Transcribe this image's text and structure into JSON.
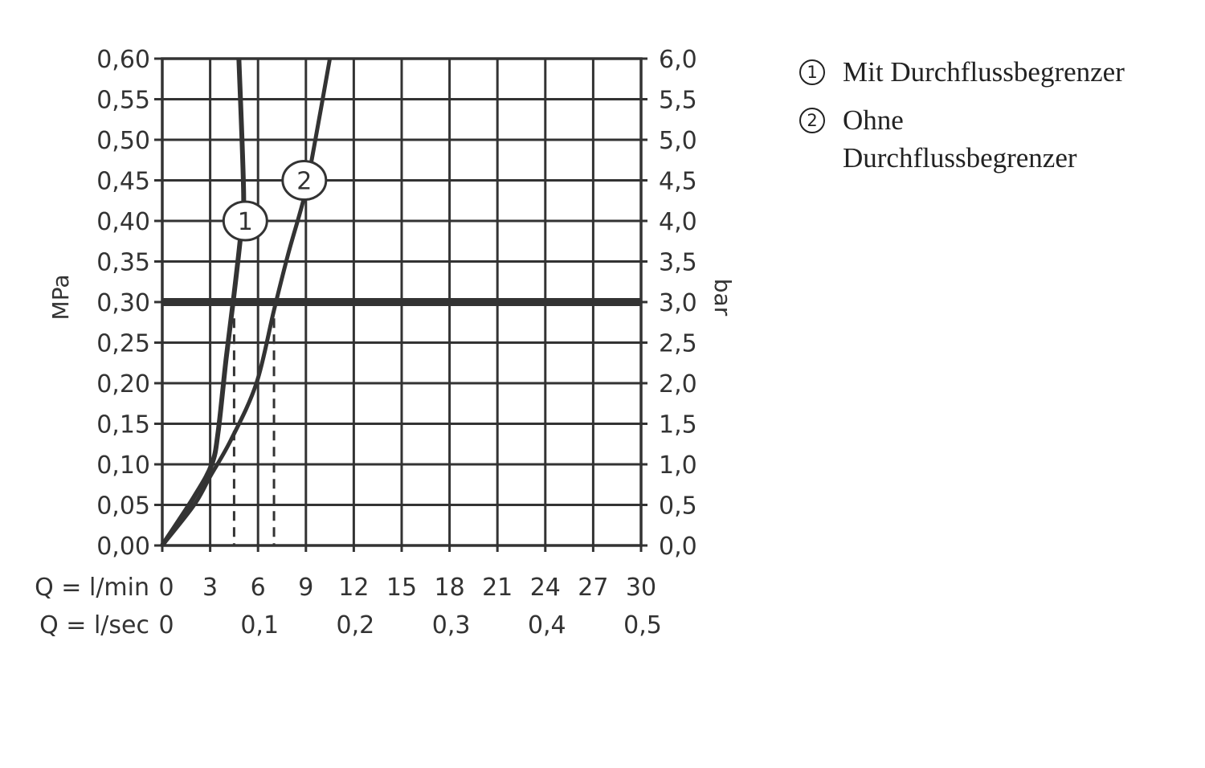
{
  "chart_data": {
    "type": "line",
    "left_axis": {
      "label": "MPa",
      "ylim": [
        0,
        0.6
      ],
      "ticks": [
        "0,00",
        "0,05",
        "0,10",
        "0,15",
        "0,20",
        "0,25",
        "0,30",
        "0,35",
        "0,40",
        "0,45",
        "0,50",
        "0,55",
        "0,60"
      ]
    },
    "right_axis": {
      "label": "bar",
      "ylim": [
        0,
        6
      ],
      "ticks": [
        "0,0",
        "0,5",
        "1,0",
        "1,5",
        "2,0",
        "2,5",
        "3,0",
        "3,5",
        "4,0",
        "4,5",
        "5,0",
        "5,5",
        "6,0"
      ]
    },
    "x_axis": {
      "label": "Q = l/min",
      "xlim": [
        0,
        30
      ],
      "ticks": [
        "0",
        "3",
        "6",
        "9",
        "12",
        "15",
        "18",
        "21",
        "24",
        "27",
        "30"
      ],
      "tick_values": [
        0,
        3,
        6,
        9,
        12,
        15,
        18,
        21,
        24,
        27,
        30
      ]
    },
    "x_axis_secondary": {
      "label": "Q = l/sec",
      "ticks": [
        "0",
        "0,1",
        "0,2",
        "0,3",
        "0,4",
        "0,5"
      ],
      "tick_values_lmin": [
        0,
        6,
        12,
        18,
        24,
        30
      ]
    },
    "grid": true,
    "reference_line": {
      "y": 0.3
    },
    "series": [
      {
        "name": "Mit Durchflussbegrenzer",
        "marker_label": "1",
        "label_at": [
          5.2,
          0.4
        ],
        "x": [
          0,
          2,
          3.1,
          3.5,
          4.0,
          4.5,
          4.9,
          5.1,
          4.8
        ],
        "y": [
          0,
          0.06,
          0.1,
          0.14,
          0.23,
          0.31,
          0.38,
          0.43,
          0.6
        ],
        "drop_x": 4.5
      },
      {
        "name": "Ohne Durchflussbegrenzer",
        "marker_label": "2",
        "label_at": [
          8.9,
          0.45
        ],
        "x": [
          0,
          2,
          3,
          4.3,
          5.9,
          7.0,
          7.9,
          8.9,
          9.5,
          10.5
        ],
        "y": [
          0,
          0.05,
          0.085,
          0.13,
          0.2,
          0.29,
          0.36,
          0.43,
          0.49,
          0.6
        ],
        "drop_x": 7.0
      }
    ]
  },
  "legend": [
    {
      "num": "1",
      "text": "Mit Durchflussbegrenzer"
    },
    {
      "num": "2",
      "text": "Ohne Durchflussbegrenzer"
    }
  ],
  "colors": {
    "ink": "#333333"
  }
}
